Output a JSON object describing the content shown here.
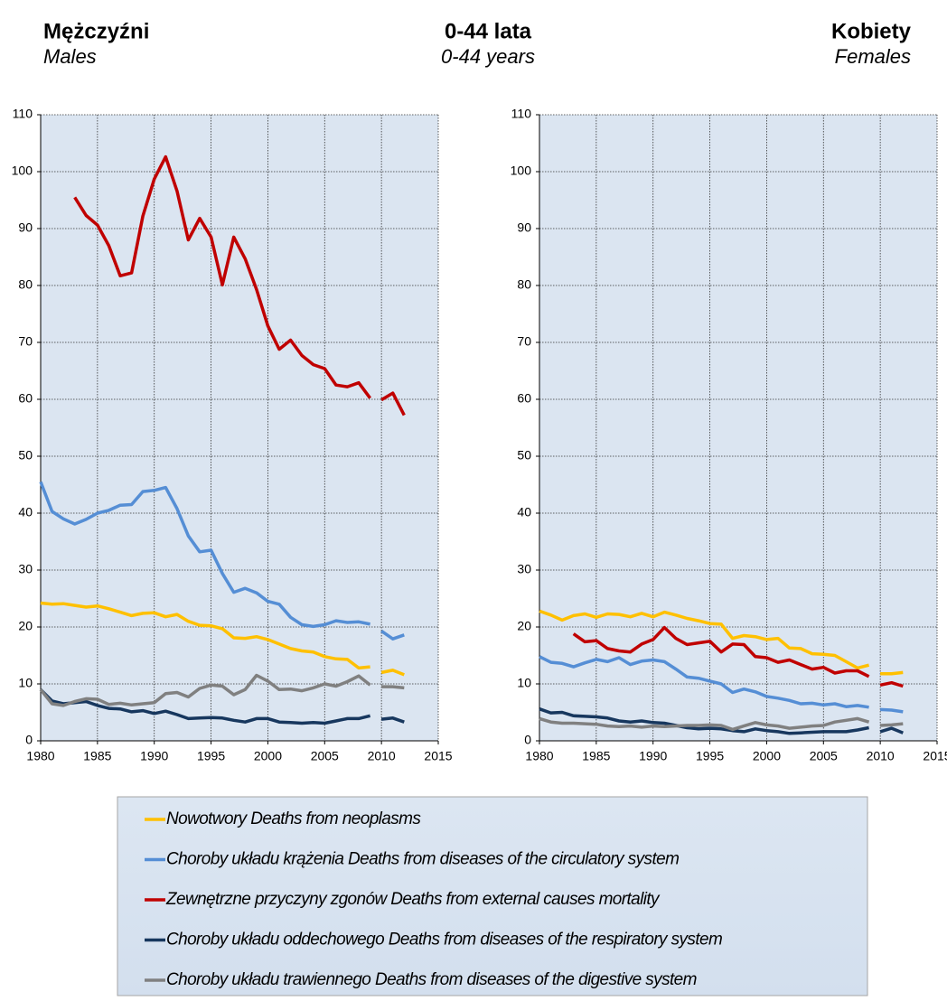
{
  "header": {
    "left_title": "Mężczyźni",
    "left_subtitle": "Males",
    "center_title": "0-44 lata",
    "center_subtitle": "0-44 years",
    "right_title": "Kobiety",
    "right_subtitle": "Females"
  },
  "chart_data": [
    {
      "type": "line",
      "x": [
        1980,
        1981,
        1982,
        1983,
        1984,
        1985,
        1986,
        1987,
        1988,
        1989,
        1990,
        1991,
        1992,
        1993,
        1994,
        1995,
        1996,
        1997,
        1998,
        1999,
        2000,
        2001,
        2002,
        2003,
        2004,
        2005,
        2006,
        2007,
        2008,
        2009,
        2010,
        2011,
        2012
      ],
      "break_after": 2009,
      "xlim": [
        1980,
        2015
      ],
      "xticks": [
        1980,
        1985,
        1990,
        1995,
        2000,
        2005,
        2010,
        2015
      ],
      "ylim": [
        0,
        110
      ],
      "yticks": [
        0,
        10,
        20,
        30,
        40,
        50,
        60,
        70,
        80,
        90,
        100,
        110
      ],
      "grid": true,
      "series": [
        {
          "name": "Nowotwory Deaths from neoplasms",
          "color": "#ffc000",
          "values": [
            24.2,
            24,
            24.1,
            23.8,
            23.5,
            23.7,
            23.2,
            22.6,
            22,
            22.4,
            22.5,
            21.8,
            22.2,
            21,
            20.3,
            20.2,
            19.7,
            18.1,
            18,
            18.3,
            17.8,
            17,
            16.2,
            15.8,
            15.6,
            14.8,
            14.4,
            14.3,
            12.8,
            13,
            12,
            12.4,
            11.6
          ]
        },
        {
          "name": "Choroby układu krążenia  Deaths from diseases of the circulatory system",
          "color": "#558ed5",
          "values": [
            45.5,
            40.3,
            39,
            38.1,
            38.9,
            40,
            40.5,
            41.4,
            41.5,
            43.8,
            44,
            44.5,
            40.8,
            36,
            33.2,
            33.5,
            29.4,
            26.1,
            26.8,
            26,
            24.5,
            24,
            21.7,
            20.4,
            20.1,
            20.4,
            21.1,
            20.8,
            20.9,
            20.5,
            19.3,
            17.9,
            18.6
          ]
        },
        {
          "name": "Zewnętrzne przyczyny zgonów  Deaths from external causes mortality",
          "color": "#c00000",
          "values": [
            null,
            null,
            null,
            95.5,
            92.3,
            90.6,
            87,
            81.7,
            82.2,
            92.2,
            98.7,
            102.6,
            96.6,
            88,
            91.8,
            88.5,
            80.1,
            88.5,
            84.7,
            79.3,
            72.9,
            68.8,
            70.4,
            67.7,
            66.1,
            65.4,
            62.5,
            62.2,
            62.9,
            60.2,
            59.9,
            61.1,
            57.2
          ]
        },
        {
          "name": "Choroby układu oddechowego  Deaths from diseases of the respiratory system",
          "color": "#17375e",
          "values": [
            9,
            7,
            6.5,
            6.7,
            6.9,
            6.2,
            5.7,
            5.6,
            5.1,
            5.3,
            4.8,
            5.2,
            4.6,
            3.9,
            4,
            4.1,
            4,
            3.6,
            3.3,
            3.9,
            3.9,
            3.3,
            3.2,
            3.1,
            3.2,
            3.1,
            3.5,
            3.9,
            3.9,
            4.4,
            3.8,
            4,
            3.3
          ]
        },
        {
          "name": "Choroby układu trawiennego  Deaths from diseases of the digestive system",
          "color": "#808080",
          "values": [
            9,
            6.5,
            6.2,
            6.9,
            7.4,
            7.3,
            6.4,
            6.6,
            6.3,
            6.5,
            6.7,
            8.3,
            8.5,
            7.7,
            9.2,
            9.8,
            9.6,
            8.1,
            9,
            11.5,
            10.5,
            9,
            9.1,
            8.8,
            9.3,
            10,
            9.6,
            10.4,
            11.4,
            9.8,
            9.5,
            9.5,
            9.3
          ]
        }
      ]
    },
    {
      "type": "line",
      "x": [
        1980,
        1981,
        1982,
        1983,
        1984,
        1985,
        1986,
        1987,
        1988,
        1989,
        1990,
        1991,
        1992,
        1993,
        1994,
        1995,
        1996,
        1997,
        1998,
        1999,
        2000,
        2001,
        2002,
        2003,
        2004,
        2005,
        2006,
        2007,
        2008,
        2009,
        2010,
        2011,
        2012
      ],
      "break_after": 2009,
      "xlim": [
        1980,
        2015
      ],
      "xticks": [
        1980,
        1985,
        1990,
        1995,
        2000,
        2005,
        2010,
        2015
      ],
      "ylim": [
        0,
        110
      ],
      "yticks": [
        0,
        10,
        20,
        30,
        40,
        50,
        60,
        70,
        80,
        90,
        100,
        110
      ],
      "grid": true,
      "series": [
        {
          "color": "#ffc000",
          "values": [
            22.8,
            22.1,
            21.2,
            22,
            22.3,
            21.7,
            22.3,
            22.2,
            21.8,
            22.4,
            21.8,
            22.6,
            22.1,
            21.5,
            21.1,
            20.6,
            20.5,
            18,
            18.5,
            18.3,
            17.8,
            18,
            16.3,
            16.2,
            15.3,
            15.2,
            15,
            13.9,
            12.8,
            13.3,
            11.8,
            11.8,
            12
          ]
        },
        {
          "color": "#558ed5",
          "values": [
            14.8,
            13.8,
            13.6,
            13,
            13.7,
            14.3,
            13.9,
            14.6,
            13.4,
            14,
            14.2,
            13.9,
            12.6,
            11.2,
            11,
            10.5,
            10,
            8.5,
            9.1,
            8.6,
            7.8,
            7.5,
            7.1,
            6.5,
            6.6,
            6.3,
            6.5,
            6,
            6.2,
            5.9,
            5.5,
            5.4,
            5.1
          ]
        },
        {
          "color": "#c00000",
          "values": [
            null,
            null,
            null,
            18.8,
            17.4,
            17.6,
            16.2,
            15.8,
            15.6,
            17,
            17.8,
            19.9,
            18,
            16.9,
            17.2,
            17.5,
            15.6,
            17,
            16.9,
            14.8,
            14.6,
            13.8,
            14.2,
            13.4,
            12.6,
            12.9,
            11.9,
            12.3,
            12.3,
            11.3,
            9.8,
            10.2,
            9.6
          ]
        },
        {
          "color": "#17375e",
          "values": [
            5.6,
            4.9,
            5,
            4.4,
            4.3,
            4.2,
            4,
            3.5,
            3.3,
            3.5,
            3.2,
            3.1,
            2.7,
            2.3,
            2.1,
            2.2,
            2.1,
            1.8,
            1.6,
            2.1,
            1.8,
            1.6,
            1.3,
            1.4,
            1.5,
            1.6,
            1.6,
            1.6,
            1.9,
            2.3,
            1.6,
            2.2,
            1.4
          ]
        },
        {
          "color": "#808080",
          "values": [
            3.9,
            3.3,
            3.1,
            3.1,
            3,
            2.9,
            2.6,
            2.5,
            2.6,
            2.4,
            2.6,
            2.5,
            2.6,
            2.7,
            2.7,
            2.8,
            2.7,
            2,
            2.6,
            3.2,
            2.8,
            2.6,
            2.2,
            2.4,
            2.6,
            2.7,
            3.3,
            3.6,
            3.9,
            3.3,
            2.7,
            2.8,
            3
          ]
        }
      ]
    }
  ]
}
